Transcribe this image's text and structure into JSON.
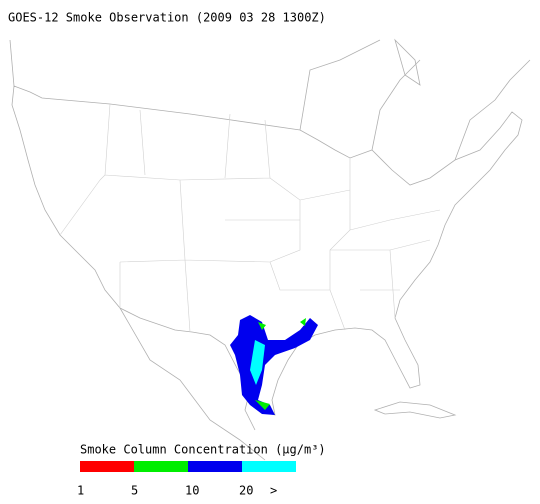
{
  "header": {
    "title": "GOES-12 Smoke Observation (2009 03 28  1300Z)"
  },
  "legend": {
    "title": "Smoke Column Concentration (µg/m³)",
    "colors": [
      "#ff0000",
      "#00ee00",
      "#0000ee",
      "#00ffff"
    ],
    "labels": [
      "1",
      "5",
      "10",
      "20",
      ">"
    ]
  }
}
